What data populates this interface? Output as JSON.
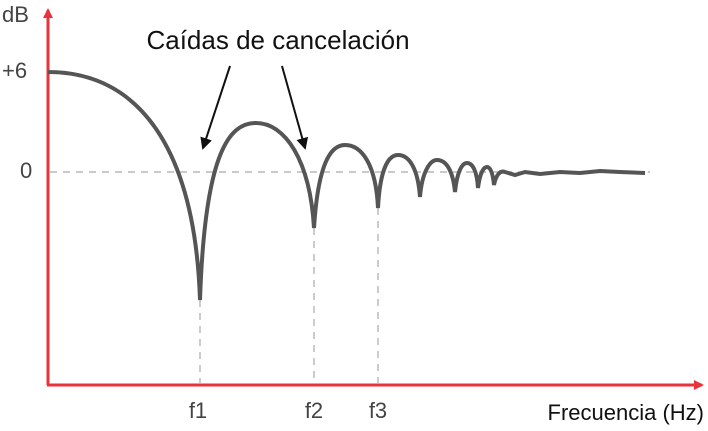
{
  "y_axis": {
    "label": "dB",
    "marks": [
      "+6",
      "0"
    ]
  },
  "x_axis": {
    "label": "Frecuencia (Hz)",
    "marks": [
      "f1",
      "f2",
      "f3"
    ]
  },
  "annotation": "Caídas de cancelación"
}
